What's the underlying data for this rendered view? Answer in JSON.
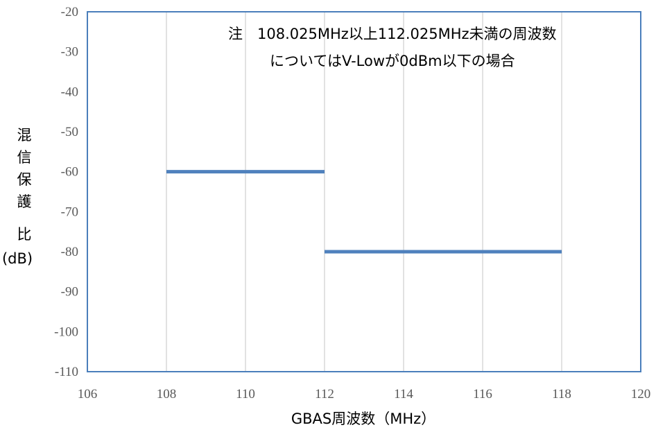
{
  "chart_data": {
    "type": "line",
    "title": "",
    "xlabel": "GBAS周波数（MHz）",
    "ylabel_chars": [
      "混",
      "信",
      "保",
      "護",
      "比",
      "(dB)"
    ],
    "xlim": [
      106,
      120
    ],
    "ylim": [
      -110,
      -20
    ],
    "x_ticks": [
      106,
      108,
      110,
      112,
      114,
      116,
      118,
      120
    ],
    "x_tick_labels": [
      "106",
      "108",
      "110",
      "112",
      "114",
      "116",
      "118",
      "120"
    ],
    "y_ticks": [
      -20,
      -30,
      -40,
      -50,
      -60,
      -70,
      -80,
      -90,
      -100,
      -110
    ],
    "y_tick_labels": [
      "-20",
      "-30",
      "-40",
      "-50",
      "-60",
      "-70",
      "-80",
      "-90",
      "-100",
      "-110"
    ],
    "grid": "vertical",
    "annotation": {
      "line1": "注　108.025MHz以上112.025MHz未満の周波数",
      "line2": "についてはV-Lowが0dBm以下の場合"
    },
    "series": [
      {
        "color": "#4f81bd",
        "segments": [
          [
            [
              108,
              -60
            ],
            [
              112,
              -60
            ]
          ],
          [
            [
              112,
              -80
            ],
            [
              118,
              -80
            ]
          ]
        ]
      }
    ]
  },
  "colors": {
    "axis_frame": "#4a7ebb",
    "grid": "#d9d9d9",
    "series": "#4f81bd"
  }
}
